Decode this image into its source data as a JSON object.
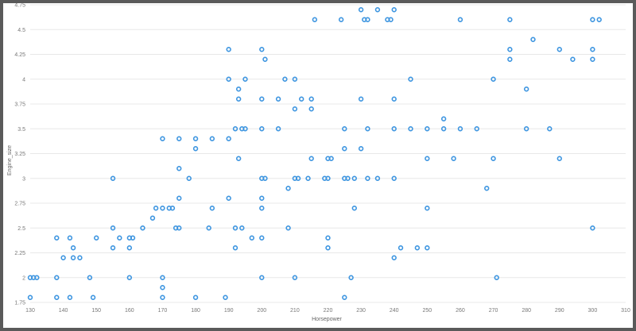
{
  "colors": {
    "point": "#3d95e0",
    "point_dark": "#2a7fd0",
    "grid": "#e8e8e8",
    "frame": "#5a5a5a"
  },
  "chart_data": {
    "type": "scatter",
    "title": "",
    "xlabel": "Horsepower",
    "ylabel": "Engine_size",
    "xlim": [
      130,
      310
    ],
    "ylim": [
      1.75,
      4.75
    ],
    "x_ticks": [
      130,
      140,
      150,
      160,
      170,
      180,
      190,
      200,
      210,
      220,
      230,
      240,
      250,
      260,
      270,
      280,
      290,
      300,
      310
    ],
    "y_ticks": [
      1.75,
      2,
      2.25,
      2.5,
      2.75,
      3,
      3.25,
      3.5,
      3.75,
      4,
      4.25,
      4.5,
      4.75
    ],
    "grid": "horizontal",
    "legend": "none",
    "points": [
      [
        130,
        1.8
      ],
      [
        130,
        2.0
      ],
      [
        131,
        2.0
      ],
      [
        132,
        2.0
      ],
      [
        138,
        1.8
      ],
      [
        138,
        2.0
      ],
      [
        138,
        2.4
      ],
      [
        140,
        2.2
      ],
      [
        142,
        1.8
      ],
      [
        142,
        2.4
      ],
      [
        143,
        2.2
      ],
      [
        143,
        2.3
      ],
      [
        145,
        2.2
      ],
      [
        148,
        2.0
      ],
      [
        149,
        1.8
      ],
      [
        150,
        2.4
      ],
      [
        155,
        2.3
      ],
      [
        155,
        2.5
      ],
      [
        155,
        3.0
      ],
      [
        157,
        2.4
      ],
      [
        160,
        2.0
      ],
      [
        160,
        2.3
      ],
      [
        160,
        2.4
      ],
      [
        161,
        2.4
      ],
      [
        164,
        2.5
      ],
      [
        167,
        2.6
      ],
      [
        168,
        2.7
      ],
      [
        170,
        1.8
      ],
      [
        170,
        1.9
      ],
      [
        170,
        2.0
      ],
      [
        170,
        2.7
      ],
      [
        170,
        3.4
      ],
      [
        172,
        2.7
      ],
      [
        173,
        2.7
      ],
      [
        174,
        2.5
      ],
      [
        175,
        2.5
      ],
      [
        175,
        2.8
      ],
      [
        175,
        3.1
      ],
      [
        175,
        3.4
      ],
      [
        178,
        3.0
      ],
      [
        180,
        1.8
      ],
      [
        180,
        3.3
      ],
      [
        180,
        3.4
      ],
      [
        184,
        2.5
      ],
      [
        185,
        2.7
      ],
      [
        185,
        3.4
      ],
      [
        189,
        1.8
      ],
      [
        190,
        2.8
      ],
      [
        190,
        3.4
      ],
      [
        190,
        4.0
      ],
      [
        190,
        4.3
      ],
      [
        192,
        2.3
      ],
      [
        192,
        2.5
      ],
      [
        192,
        3.5
      ],
      [
        193,
        3.2
      ],
      [
        193,
        3.8
      ],
      [
        193,
        3.9
      ],
      [
        194,
        2.5
      ],
      [
        194,
        3.5
      ],
      [
        195,
        3.5
      ],
      [
        195,
        4.0
      ],
      [
        197,
        2.4
      ],
      [
        200,
        2.0
      ],
      [
        200,
        2.4
      ],
      [
        200,
        2.7
      ],
      [
        200,
        2.8
      ],
      [
        200,
        3.0
      ],
      [
        200,
        3.5
      ],
      [
        200,
        3.8
      ],
      [
        200,
        4.3
      ],
      [
        201,
        3.0
      ],
      [
        201,
        4.2
      ],
      [
        205,
        3.5
      ],
      [
        205,
        3.8
      ],
      [
        207,
        4.0
      ],
      [
        208,
        2.5
      ],
      [
        208,
        2.9
      ],
      [
        210,
        2.0
      ],
      [
        210,
        3.0
      ],
      [
        210,
        3.7
      ],
      [
        210,
        4.0
      ],
      [
        211,
        3.0
      ],
      [
        212,
        3.8
      ],
      [
        214,
        3.0
      ],
      [
        215,
        3.2
      ],
      [
        215,
        3.7
      ],
      [
        215,
        3.8
      ],
      [
        216,
        4.6
      ],
      [
        219,
        3.0
      ],
      [
        220,
        2.3
      ],
      [
        220,
        2.4
      ],
      [
        220,
        3.0
      ],
      [
        220,
        3.2
      ],
      [
        221,
        3.2
      ],
      [
        224,
        4.6
      ],
      [
        225,
        1.8
      ],
      [
        225,
        3.0
      ],
      [
        225,
        3.3
      ],
      [
        225,
        3.5
      ],
      [
        226,
        3.0
      ],
      [
        227,
        2.0
      ],
      [
        228,
        2.7
      ],
      [
        228,
        3.0
      ],
      [
        230,
        3.3
      ],
      [
        230,
        3.8
      ],
      [
        230,
        4.7
      ],
      [
        231,
        4.6
      ],
      [
        232,
        3.0
      ],
      [
        232,
        3.5
      ],
      [
        232,
        4.6
      ],
      [
        235,
        3.0
      ],
      [
        235,
        4.7
      ],
      [
        238,
        4.6
      ],
      [
        239,
        4.6
      ],
      [
        240,
        2.2
      ],
      [
        240,
        3.0
      ],
      [
        240,
        3.5
      ],
      [
        240,
        3.8
      ],
      [
        240,
        4.7
      ],
      [
        242,
        2.3
      ],
      [
        245,
        3.5
      ],
      [
        245,
        4.0
      ],
      [
        247,
        2.3
      ],
      [
        250,
        2.3
      ],
      [
        250,
        2.7
      ],
      [
        250,
        3.2
      ],
      [
        250,
        3.5
      ],
      [
        255,
        3.5
      ],
      [
        255,
        3.6
      ],
      [
        258,
        3.2
      ],
      [
        260,
        3.5
      ],
      [
        260,
        4.6
      ],
      [
        265,
        3.5
      ],
      [
        268,
        2.9
      ],
      [
        270,
        3.2
      ],
      [
        270,
        4.0
      ],
      [
        271,
        2.0
      ],
      [
        275,
        4.2
      ],
      [
        275,
        4.3
      ],
      [
        275,
        4.6
      ],
      [
        280,
        3.5
      ],
      [
        280,
        3.9
      ],
      [
        282,
        4.4
      ],
      [
        287,
        3.5
      ],
      [
        290,
        3.2
      ],
      [
        290,
        4.3
      ],
      [
        294,
        4.2
      ],
      [
        300,
        2.5
      ],
      [
        300,
        4.2
      ],
      [
        300,
        4.3
      ],
      [
        300,
        4.6
      ],
      [
        302,
        4.6
      ]
    ]
  }
}
